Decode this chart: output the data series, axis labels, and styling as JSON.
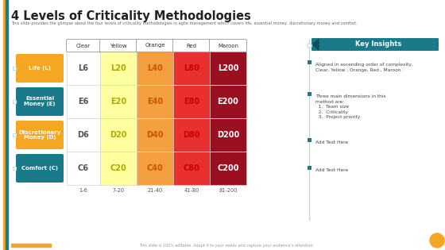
{
  "title": "4 Levels of Criticality Methodologies",
  "subtitle": "This slide provides the glimpse about the four levels of criticality methodologies in agile management which covers life, essential money, discretionary money and comfort.",
  "footer": "This slide is 100% editable. Adapt it to your needs and capture your audience's attention.",
  "col_headers": [
    "Clear",
    "Yellow",
    "Orange",
    "Red",
    "Maroon"
  ],
  "row_labels": [
    "Life (L)",
    "Essential\nMoney (E)",
    "Discretionary\nMoney (D)",
    "Comfort (C)"
  ],
  "row_label_colors": [
    "#F5A623",
    "#1A7A8A",
    "#F5A623",
    "#1A7A8A"
  ],
  "col_colors": [
    "#FFFFFF",
    "#FFFFA0",
    "#F5A040",
    "#E83030",
    "#9B1020"
  ],
  "cell_data": [
    [
      "L6",
      "L20",
      "L40",
      "L80",
      "L200"
    ],
    [
      "E6",
      "E20",
      "E40",
      "E80",
      "E200"
    ],
    [
      "D6",
      "D20",
      "D40",
      "D80",
      "D200"
    ],
    [
      "C6",
      "C20",
      "C40",
      "C80",
      "C200"
    ]
  ],
  "cell_text_colors": [
    [
      "#555555",
      "#aaaa00",
      "#cc5500",
      "#cc0000",
      "#ffffff"
    ],
    [
      "#555555",
      "#aaaa00",
      "#cc5500",
      "#cc0000",
      "#ffffff"
    ],
    [
      "#555555",
      "#aaaa00",
      "#cc5500",
      "#cc0000",
      "#ffffff"
    ],
    [
      "#555555",
      "#aaaa00",
      "#cc5500",
      "#cc0000",
      "#ffffff"
    ]
  ],
  "range_labels": [
    "1-6",
    "7-20",
    "21-40",
    "41-80",
    "81-200"
  ],
  "key_insights_title": "Key Insights",
  "key_insights_bg": "#1A7A8A",
  "insights": [
    "Aligned in ascending order of complexity,\nClear, Yellow , Orange, Red , Maroon.",
    "Three main dimensions in this\nmethod are:\n  1.  Team size\n  2.  Criticality\n  3.  Project priority",
    "Add Text Here",
    "Add Text Here"
  ],
  "bg_color": "#ffffff",
  "title_color": "#222222",
  "subtitle_color": "#666666",
  "small_square_color": "#1A7A8A",
  "diamond_color": "#c8dde0",
  "left_bar1_color": "#F5A623",
  "left_bar2_color": "#1A7A8A",
  "bottom_bar_color": "#F5A623",
  "bottom_circle_color": "#F5A623"
}
